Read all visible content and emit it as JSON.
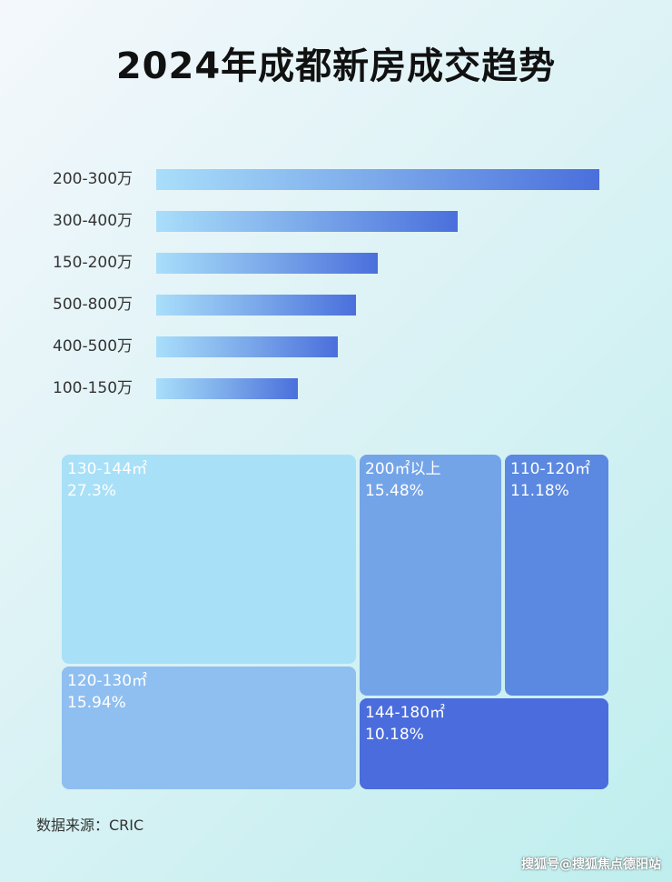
{
  "chart_data": [
    {
      "type": "bar",
      "orientation": "horizontal",
      "title": "2024年成都新房成交趋势",
      "categories": [
        "200-300万",
        "300-400万",
        "150-200万",
        "500-800万",
        "400-500万",
        "100-150万"
      ],
      "values": [
        100,
        68,
        50,
        45,
        41,
        32
      ],
      "value_note_relative": true,
      "grid": false,
      "color_gradient": [
        "#a9defa",
        "#4a6fdc"
      ]
    },
    {
      "type": "treemap",
      "items": [
        {
          "label": "130-144㎡",
          "value": "27.3%",
          "color": "#a8e0f8"
        },
        {
          "label": "120-130㎡",
          "value": "15.94%",
          "color": "#8fbff0"
        },
        {
          "label": "200㎡以上",
          "value": "15.48%",
          "color": "#74a4e8"
        },
        {
          "label": "110-120㎡",
          "value": "11.18%",
          "color": "#5b88e0"
        },
        {
          "label": "144-180㎡",
          "value": "10.18%",
          "color": "#4a6cdc"
        }
      ]
    }
  ],
  "source": "数据来源：CRIC",
  "watermark": "搜狐号@搜狐焦点德阳站"
}
